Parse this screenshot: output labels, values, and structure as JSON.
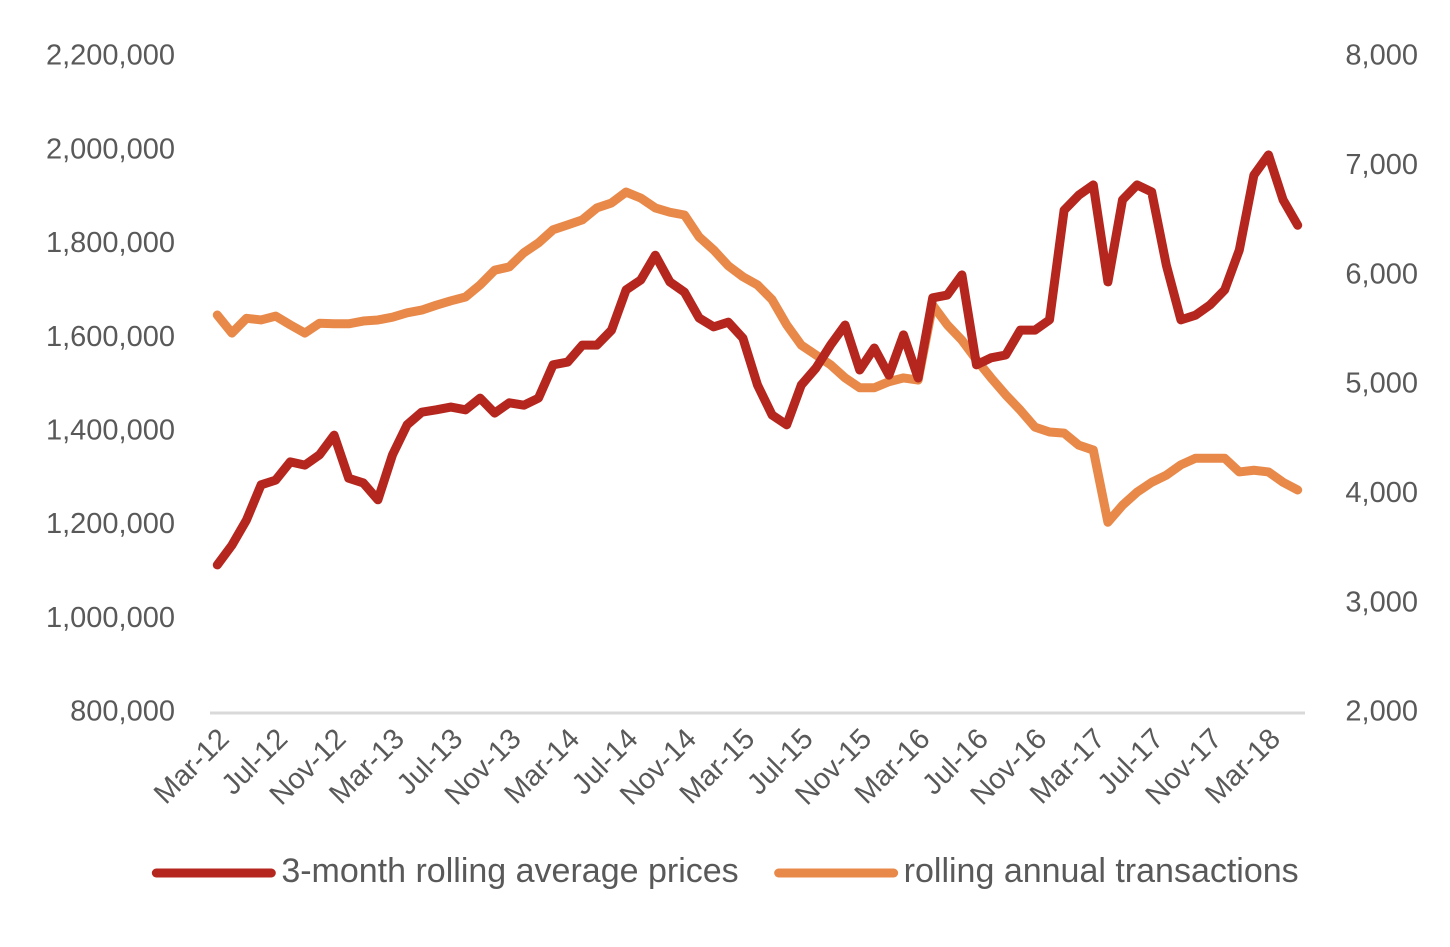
{
  "chart_data": {
    "type": "line",
    "categories": [
      "Mar-12",
      null,
      null,
      null,
      "Jul-12",
      null,
      null,
      null,
      "Nov-12",
      null,
      null,
      null,
      "Mar-13",
      null,
      null,
      null,
      "Jul-13",
      null,
      null,
      null,
      "Nov-13",
      null,
      null,
      null,
      "Mar-14",
      null,
      null,
      null,
      "Jul-14",
      null,
      null,
      null,
      "Nov-14",
      null,
      null,
      null,
      "Mar-15",
      null,
      null,
      null,
      "Jul-15",
      null,
      null,
      null,
      "Nov-15",
      null,
      null,
      null,
      "Mar-16",
      null,
      null,
      null,
      "Jul-16",
      null,
      null,
      null,
      "Nov-16",
      null,
      null,
      null,
      "Mar-17",
      null,
      null,
      null,
      "Jul-17",
      null,
      null,
      null,
      "Nov-17",
      null,
      null,
      null,
      "Mar-18",
      null,
      null
    ],
    "series": [
      {
        "name": "3-month rolling average prices",
        "color": "#b5271e",
        "values": [
          1116000,
          1158000,
          1212000,
          1287000,
          1297000,
          1336000,
          1329000,
          1351000,
          1393000,
          1301000,
          1291000,
          1255000,
          1351000,
          1415000,
          1442000,
          1447000,
          1453000,
          1447000,
          1472000,
          1440000,
          1462000,
          1457000,
          1472000,
          1543000,
          1549000,
          1585000,
          1585000,
          1617000,
          1703000,
          1724000,
          1777000,
          1720000,
          1698000,
          1643000,
          1624000,
          1634000,
          1600000,
          1500000,
          1436000,
          1415000,
          1500000,
          1536000,
          1585000,
          1628000,
          1532000,
          1579000,
          1521000,
          1607000,
          1515000,
          1686000,
          1692000,
          1735000,
          1543000,
          1558000,
          1564000,
          1617000,
          1617000,
          1639000,
          1873000,
          1905000,
          1927000,
          1720000,
          1895000,
          1927000,
          1912000,
          1756000,
          1639000,
          1649000,
          1671000,
          1703000,
          1788000,
          1948000,
          1991000,
          1895000,
          1841000
        ]
      },
      {
        "name": "rolling annual transactions",
        "color": "#e8894a",
        "axis": "y2",
        "values": [
          5640,
          5475,
          5610,
          5595,
          5630,
          5550,
          5475,
          5565,
          5560,
          5560,
          5585,
          5595,
          5620,
          5660,
          5685,
          5730,
          5770,
          5805,
          5915,
          6050,
          6080,
          6210,
          6300,
          6420,
          6465,
          6510,
          6620,
          6665,
          6765,
          6710,
          6620,
          6580,
          6555,
          6355,
          6235,
          6090,
          5990,
          5915,
          5780,
          5550,
          5365,
          5275,
          5185,
          5065,
          4975,
          4975,
          5030,
          5065,
          5045,
          5730,
          5550,
          5410,
          5230,
          5065,
          4910,
          4770,
          4615,
          4570,
          4560,
          4450,
          4405,
          3745,
          3900,
          4020,
          4110,
          4175,
          4270,
          4330,
          4330,
          4330,
          4205,
          4220,
          4205,
          4110,
          4040
        ]
      }
    ],
    "ylim": [
      800000,
      2200000
    ],
    "yticks": [
      {
        "value": 800000,
        "label": "800,000"
      },
      {
        "value": 1000000,
        "label": "1,000,000"
      },
      {
        "value": 1200000,
        "label": "1,200,000"
      },
      {
        "value": 1400000,
        "label": "1,400,000"
      },
      {
        "value": 1600000,
        "label": "1,600,000"
      },
      {
        "value": 1800000,
        "label": "1,800,000"
      },
      {
        "value": 2000000,
        "label": "2,000,000"
      },
      {
        "value": 2200000,
        "label": "2,200,000"
      }
    ],
    "y2lim": [
      2000,
      8000
    ],
    "y2ticks": [
      {
        "value": 2000,
        "label": "2,000"
      },
      {
        "value": 3000,
        "label": "3,000"
      },
      {
        "value": 4000,
        "label": "4,000"
      },
      {
        "value": 5000,
        "label": "5,000"
      },
      {
        "value": 6000,
        "label": "6,000"
      },
      {
        "value": 7000,
        "label": "7,000"
      },
      {
        "value": 8000,
        "label": "8,000"
      }
    ],
    "legend": "bottom"
  }
}
